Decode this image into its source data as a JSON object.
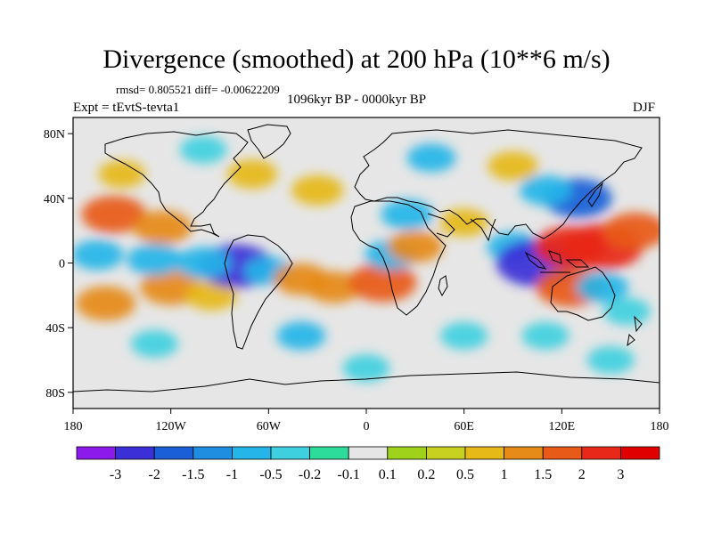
{
  "title": "Divergence (smoothed) at 200 hPa (10**6 m/s)",
  "stats": "rmsd= 0.805521 diff= -0.00622209",
  "experiment": "Expt = tEvtS-tevta1",
  "period": "1096kyr BP - 0000kyr BP",
  "season": "DJF",
  "map": {
    "lon_range": [
      -180,
      180
    ],
    "lat_range": [
      -90,
      90
    ],
    "x_ticks": [
      {
        "lon": -180,
        "label": "180"
      },
      {
        "lon": -120,
        "label": "120W"
      },
      {
        "lon": -60,
        "label": "60W"
      },
      {
        "lon": 0,
        "label": "0"
      },
      {
        "lon": 60,
        "label": "60E"
      },
      {
        "lon": 120,
        "label": "120E"
      },
      {
        "lon": 180,
        "label": "180"
      }
    ],
    "y_ticks": [
      {
        "lat": 80,
        "label": "80N"
      },
      {
        "lat": 40,
        "label": "40N"
      },
      {
        "lat": 0,
        "label": "0"
      },
      {
        "lat": -40,
        "label": "40S"
      },
      {
        "lat": -80,
        "label": "80S"
      }
    ],
    "anomalies": [
      {
        "lon": -155,
        "lat": 30,
        "value": 1.6
      },
      {
        "lon": -125,
        "lat": 22,
        "value": 1.2
      },
      {
        "lon": -160,
        "lat": -25,
        "value": 1.3
      },
      {
        "lon": -120,
        "lat": -15,
        "value": 1.4
      },
      {
        "lon": -95,
        "lat": -20,
        "value": 0.8
      },
      {
        "lon": -80,
        "lat": -2,
        "value": -2.3
      },
      {
        "lon": -100,
        "lat": 0,
        "value": -1.0
      },
      {
        "lon": -130,
        "lat": 2,
        "value": -1.0
      },
      {
        "lon": -165,
        "lat": 5,
        "value": -0.8
      },
      {
        "lon": -60,
        "lat": -5,
        "value": -0.6
      },
      {
        "lon": -40,
        "lat": -10,
        "value": 1.0
      },
      {
        "lon": -20,
        "lat": -15,
        "value": 1.0
      },
      {
        "lon": 10,
        "lat": -12,
        "value": 1.8
      },
      {
        "lon": 15,
        "lat": 5,
        "value": -0.8
      },
      {
        "lon": 30,
        "lat": 10,
        "value": 1.0
      },
      {
        "lon": 25,
        "lat": 30,
        "value": -0.8
      },
      {
        "lon": 60,
        "lat": 25,
        "value": 0.6
      },
      {
        "lon": 90,
        "lat": 10,
        "value": -0.8
      },
      {
        "lon": 105,
        "lat": 0,
        "value": -2.7
      },
      {
        "lon": 125,
        "lat": 10,
        "value": 2.0
      },
      {
        "lon": 145,
        "lat": 10,
        "value": 2.6
      },
      {
        "lon": 165,
        "lat": 20,
        "value": 1.5
      },
      {
        "lon": 130,
        "lat": 40,
        "value": -1.8
      },
      {
        "lon": 110,
        "lat": 45,
        "value": -0.8
      },
      {
        "lon": 125,
        "lat": -15,
        "value": 1.8
      },
      {
        "lon": 145,
        "lat": -15,
        "value": -0.8
      },
      {
        "lon": 160,
        "lat": -30,
        "value": -0.5
      },
      {
        "lon": -30,
        "lat": 45,
        "value": 0.8
      },
      {
        "lon": -70,
        "lat": 55,
        "value": 0.7
      },
      {
        "lon": -100,
        "lat": 70,
        "value": -0.5
      },
      {
        "lon": 40,
        "lat": 65,
        "value": -0.6
      },
      {
        "lon": 90,
        "lat": 60,
        "value": 0.7
      },
      {
        "lon": -40,
        "lat": -45,
        "value": -0.6
      },
      {
        "lon": 60,
        "lat": -45,
        "value": -0.5
      },
      {
        "lon": 110,
        "lat": -45,
        "value": -0.5
      },
      {
        "lon": -130,
        "lat": -50,
        "value": -0.5
      },
      {
        "lon": -150,
        "lat": 55,
        "value": 0.5
      },
      {
        "lon": 0,
        "lat": -65,
        "value": -0.5
      },
      {
        "lon": 150,
        "lat": -60,
        "value": -0.5
      }
    ]
  },
  "colorbar": {
    "labels": [
      "-3",
      "-2",
      "-1.5",
      "-1",
      "-0.5",
      "-0.2",
      "-0.1",
      "0.1",
      "0.2",
      "0.5",
      "1",
      "1.5",
      "2",
      "3"
    ],
    "levels": [
      -3,
      -2,
      -1.5,
      -1,
      -0.5,
      -0.2,
      -0.1,
      0.1,
      0.2,
      0.5,
      1,
      1.5,
      2,
      3
    ],
    "colors": [
      "#8c1aea",
      "#3b30d8",
      "#1a5fd8",
      "#1f8ee0",
      "#25b5e8",
      "#3fd0e0",
      "#2ddc9a",
      "#e6e6e6",
      "#9fd21a",
      "#c8d020",
      "#e6b818",
      "#e68a18",
      "#e85a18",
      "#e82818",
      "#e00000"
    ]
  }
}
